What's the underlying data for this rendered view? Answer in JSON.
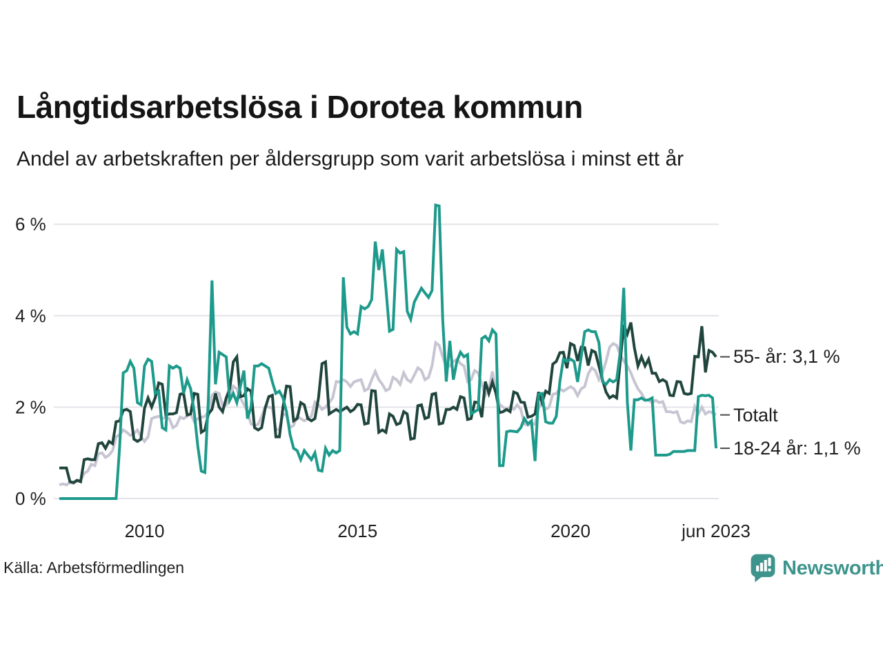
{
  "title": "Långtidsarbetslösa i Dorotea kommun",
  "subtitle": "Andel av arbetskraften per åldersgrupp som varit arbetslösa i minst ett år",
  "source": "Källa: Arbetsförmedlingen",
  "brand": {
    "name": "Newsworthy",
    "color": "#3e948c"
  },
  "chart_data": {
    "type": "line",
    "title": "Långtidsarbetslösa i Dorotea kommun",
    "subtitle": "Andel av arbetskraften per åldersgrupp som varit arbetslösa i minst ett år",
    "x_range": {
      "start": "2008-01",
      "end": "2023-06",
      "frequency": "monthly"
    },
    "ylim": [
      0,
      6.6
    ],
    "grid": true,
    "grid_color": "#e4e2e8",
    "text_color": "#1f1f1f",
    "y_axis": {
      "ticks": [
        {
          "label": "0 %",
          "value": 0
        },
        {
          "label": "2 %",
          "value": 2
        },
        {
          "label": "4 %",
          "value": 4
        },
        {
          "label": "6 %",
          "value": 6
        }
      ]
    },
    "x_axis": {
      "ticks": [
        {
          "label": "2010",
          "year": 2010,
          "month": 1
        },
        {
          "label": "2015",
          "year": 2015,
          "month": 1
        },
        {
          "label": "2020",
          "year": 2020,
          "month": 1
        },
        {
          "label": "jun 2023",
          "year": 2023,
          "month": 6
        }
      ]
    },
    "legend_position": "right-end-labels",
    "series": [
      {
        "id": "totalt",
        "name": "Totalt",
        "end_label": "Totalt",
        "color": "#c8c5d3",
        "values": [
          0.3,
          0.32,
          0.3,
          0.35,
          0.33,
          0.38,
          0.4,
          0.55,
          0.6,
          0.75,
          0.72,
          0.98,
          1,
          0.9,
          0.95,
          1.05,
          1.35,
          1.4,
          1.5,
          1.45,
          1.38,
          1.42,
          1.5,
          1.35,
          1.25,
          1.35,
          1.75,
          1.78,
          1.8,
          1.75,
          1.78,
          1.75,
          1.55,
          1.6,
          1.78,
          1.75,
          1.8,
          1.85,
          1.68,
          1.75,
          1.78,
          1.8,
          1.9,
          2.26,
          2.33,
          2.3,
          2.03,
          2.05,
          2.2,
          2.46,
          2.4,
          2.2,
          2.06,
          1.9,
          1.63,
          1.6,
          1.62,
          1.8,
          2.01,
          2,
          1.98,
          1.5,
          1.52,
          1.85,
          1.82,
          1.55,
          1.6,
          1.8,
          1.75,
          1.7,
          1.75,
          1.8,
          2.11,
          2.05,
          1.95,
          2,
          2.1,
          2.2,
          2.56,
          2.55,
          2.6,
          2.55,
          2.45,
          2.55,
          2.58,
          2.6,
          2.36,
          2.4,
          2.6,
          2.78,
          2.6,
          2.5,
          2.36,
          2.4,
          2.65,
          2.6,
          2.5,
          2.75,
          2.6,
          2.55,
          2.7,
          2.86,
          2.8,
          2.6,
          2.65,
          2.9,
          3.41,
          3.35,
          3.1,
          2.88,
          2.9,
          3,
          3.05,
          2.95,
          2.9,
          2.56,
          2.6,
          2.8,
          2.75,
          2.5,
          2.26,
          2.4,
          2.78,
          2.36,
          2.06,
          2,
          1.95,
          2,
          1.95,
          2.05,
          1.95,
          1.63,
          1.6,
          1.65,
          1.62,
          1.98,
          2.1,
          1.95,
          2,
          2.28,
          2.3,
          2.4,
          2.35,
          2.4,
          2.45,
          2.4,
          2.25,
          2.4,
          2.45,
          2.73,
          2.86,
          2.8,
          2.6,
          2.75,
          3,
          3.31,
          3.39,
          3.35,
          3.15,
          3.01,
          2.9,
          2.75,
          2.56,
          2.4,
          2.3,
          2.16,
          2.15,
          2.1,
          2.15,
          2.1,
          2.12,
          1.9,
          1.9,
          1.88,
          1.9,
          1.68,
          1.65,
          1.7,
          1.68,
          2.01,
          1.85,
          2,
          1.85,
          1.9,
          1.88,
          1.83
        ]
      },
      {
        "id": "55plus",
        "name": "55- år",
        "end_label": "55- år: 3,1 %",
        "color": "#20453d",
        "values": [
          0.67,
          0.67,
          0.67,
          0.37,
          0.35,
          0.4,
          0.37,
          0.85,
          0.87,
          0.85,
          0.85,
          1.2,
          1.22,
          1.1,
          1.25,
          1.2,
          1.68,
          1.7,
          1.93,
          1.95,
          1.9,
          1.3,
          1.25,
          1.3,
          1.98,
          2.2,
          2,
          2.2,
          2.53,
          2.5,
          1.83,
          1.85,
          1.85,
          1.88,
          2.28,
          2.3,
          1.83,
          1.85,
          2.3,
          2.28,
          1.45,
          1.5,
          1.85,
          1.95,
          2.3,
          2,
          1.9,
          2.2,
          2.4,
          2.99,
          3.1,
          2.23,
          2.25,
          2.4,
          2.35,
          1.55,
          1.5,
          1.55,
          1.98,
          2.23,
          2.26,
          1.35,
          1.35,
          2,
          2.46,
          2.45,
          1.7,
          1.75,
          2.1,
          2.05,
          1.75,
          1.7,
          1.75,
          2.2,
          2.95,
          2.99,
          1.85,
          1.9,
          1.95,
          1.9,
          1.95,
          2,
          1.9,
          1.95,
          2.06,
          2.05,
          1.63,
          1.65,
          2.36,
          2.35,
          1.45,
          1.5,
          1.45,
          1.85,
          1.8,
          1.62,
          1.65,
          1.9,
          1.85,
          1.3,
          1.32,
          2.03,
          2.05,
          1.75,
          1.78,
          2.28,
          2.3,
          1.63,
          1.65,
          1.95,
          1.95,
          2,
          1.95,
          2.23,
          2.2,
          1.73,
          1.75,
          2.11,
          2.1,
          1.78,
          2.56,
          2.3,
          2.55,
          2.3,
          1.88,
          1.9,
          1.95,
          1.9,
          2.33,
          2.3,
          2.11,
          2.1,
          1.78,
          1.8,
          1.85,
          2.33,
          2.1,
          2.35,
          2.3,
          2.94,
          3,
          3.19,
          3.2,
          2.85,
          3.39,
          3.35,
          3.01,
          3.31,
          3.3,
          2.91,
          3.24,
          3.2,
          2.9,
          2.6,
          2.33,
          2.2,
          2.25,
          2.2,
          3,
          3.8,
          3.6,
          3.85,
          3.3,
          2.9,
          3.1,
          2.9,
          3.05,
          2.74,
          2.74,
          2.56,
          2.6,
          2.55,
          2.26,
          2.25,
          2.56,
          2.55,
          2.3,
          2.28,
          2.3,
          3.11,
          3.1,
          3.77,
          2.76,
          3.24,
          3.2,
          3.1
        ]
      },
      {
        "id": "18-24",
        "name": "18-24 år",
        "end_label": "18-24 år: 1,1 %",
        "color": "#1d9a8b",
        "values": [
          0,
          0,
          0,
          0,
          0,
          0,
          0,
          0,
          0,
          0,
          0,
          0,
          0,
          0,
          0,
          0,
          0,
          1.15,
          2.75,
          2.8,
          3,
          2.85,
          2.1,
          2.05,
          2.9,
          3.05,
          3,
          2.3,
          2.35,
          1.55,
          1.5,
          2.9,
          2.85,
          2.9,
          2.85,
          2.3,
          2.6,
          2.4,
          1.9,
          1.15,
          0.6,
          0.57,
          2.2,
          4.77,
          2.5,
          3.2,
          3.15,
          3.1,
          2.15,
          2.3,
          2.1,
          2.45,
          2.8,
          1.75,
          2,
          2.9,
          2.9,
          2.95,
          2.9,
          2.85,
          2.55,
          2.3,
          2.35,
          2.2,
          1.9,
          1.4,
          1.1,
          1.05,
          0.85,
          1.05,
          0.95,
          0.85,
          1,
          0.62,
          0.6,
          1.1,
          0.95,
          1.05,
          1,
          1.05,
          4.84,
          3.75,
          3.6,
          3.65,
          3.6,
          4.2,
          4.15,
          4.2,
          4.35,
          5.62,
          5,
          5.45,
          4.6,
          3.66,
          3.7,
          5.45,
          5.37,
          5.4,
          4.1,
          3.92,
          4.3,
          4.45,
          4.6,
          4.5,
          4.4,
          4.55,
          6.42,
          6.4,
          3.9,
          2.56,
          3.45,
          2.6,
          3,
          3.2,
          3.1,
          3.15,
          1.85,
          1.9,
          1.95,
          3.5,
          3.55,
          3.45,
          3.69,
          3.6,
          0.72,
          0.72,
          1.46,
          1.48,
          1.47,
          1.46,
          1.55,
          1.75,
          1.63,
          1.7,
          0.82,
          2.28,
          2.3,
          1.68,
          1.65,
          1.65,
          1.8,
          2.56,
          3.05,
          3,
          3.05,
          3,
          2.55,
          3.1,
          3.65,
          3.69,
          3.65,
          3.65,
          3.41,
          2.56,
          2.5,
          2.6,
          2.55,
          2.6,
          3.2,
          4.61,
          2.11,
          1.05,
          2.16,
          2.16,
          2.2,
          2.15,
          2.16,
          2.2,
          0.95,
          0.95,
          0.95,
          0.95,
          0.97,
          1.03,
          1.03,
          1.03,
          1.03,
          1.05,
          1.05,
          1.05,
          2.23,
          2.26,
          2.25,
          2.26,
          2.2,
          1.1
        ]
      }
    ]
  }
}
